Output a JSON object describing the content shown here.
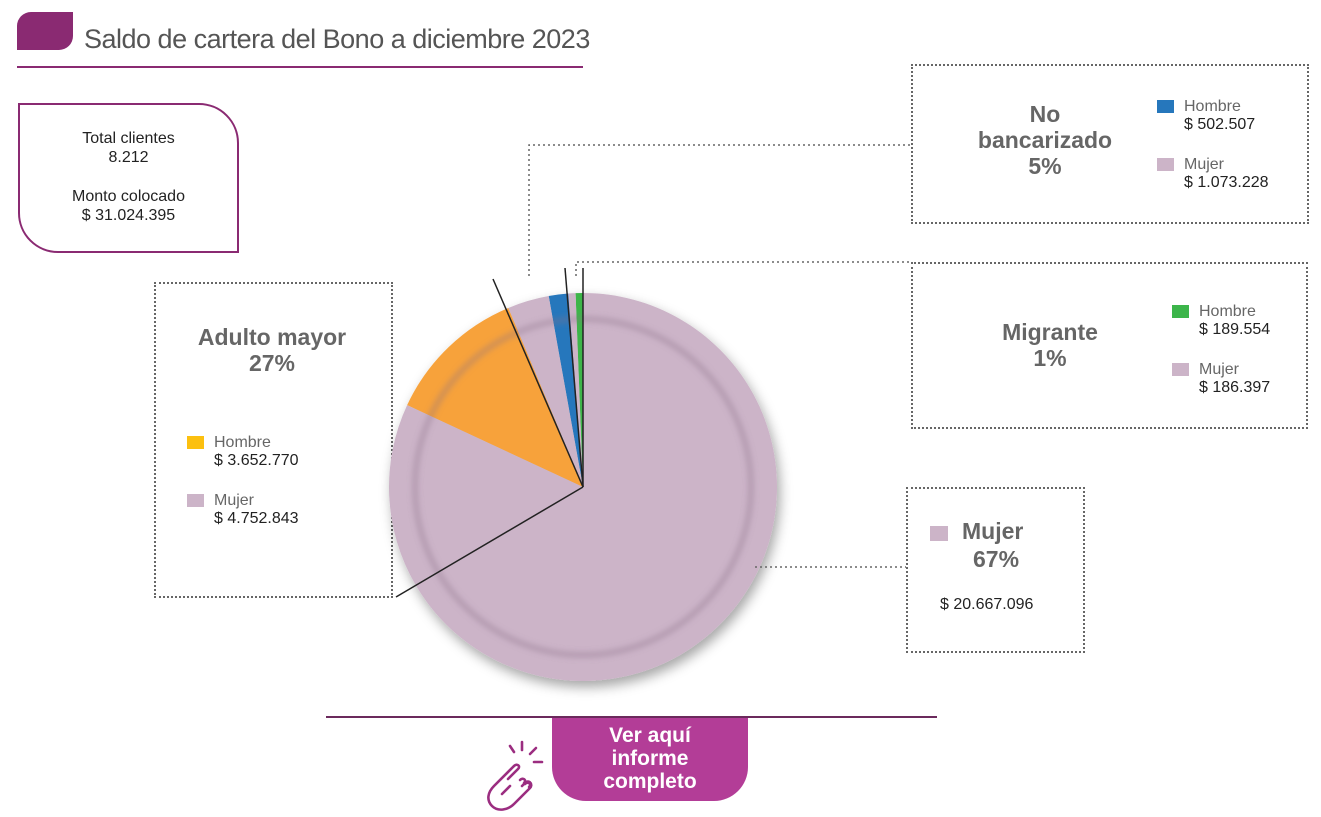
{
  "header": {
    "title": "Saldo de cartera del Bono a diciembre 2023"
  },
  "summary": {
    "clients_label": "Total clientes",
    "clients_value": "8.212",
    "amount_label": "Monto colocado",
    "amount_value": "$ 31.024.395"
  },
  "segments": {
    "adulto": {
      "title1": "Adulto mayor",
      "title2": "27%",
      "hombre_label": "Hombre",
      "hombre_value": "$ 3.652.770",
      "mujer_label": "Mujer",
      "mujer_value": "$ 4.752.843"
    },
    "nobanc": {
      "title1": "No",
      "title2": "bancarizado",
      "title3": "5%",
      "hombre_label": "Hombre",
      "hombre_value": "$ 502.507",
      "mujer_label": "Mujer",
      "mujer_value": "$ 1.073.228"
    },
    "migrante": {
      "title1": "Migrante",
      "title2": "1%",
      "hombre_label": "Hombre",
      "hombre_value": "$ 189.554",
      "mujer_label": "Mujer",
      "mujer_value": "$ 186.397"
    },
    "mujer": {
      "title1": "Mujer",
      "title2": "67%",
      "value": "$ 20.667.096"
    }
  },
  "cta": {
    "line1": "Ver aquí",
    "line2": "informe",
    "line3": "completo"
  },
  "colors": {
    "brand": "#8a2a72",
    "cta": "#b33d97",
    "mujer": "#ccb4c8",
    "adulto_hombre": "#f7a23b",
    "adulto_hombre_legend": "#fcc00f",
    "nobanc_hombre": "#2677bc",
    "migrante_hombre": "#3cb54a"
  },
  "chart_data": {
    "type": "pie",
    "title": "Saldo de cartera del Bono a diciembre 2023",
    "slices": [
      {
        "group": "Mujer",
        "sex": "Mujer",
        "value": 20667096,
        "color": "#ccb4c8"
      },
      {
        "group": "Adulto mayor",
        "sex": "Mujer",
        "value": 4752843,
        "color": "#ccb4c8"
      },
      {
        "group": "Adulto mayor",
        "sex": "Hombre",
        "value": 3652770,
        "color": "#f7a23b"
      },
      {
        "group": "No bancarizado",
        "sex": "Mujer",
        "value": 1073228,
        "color": "#ccb4c8"
      },
      {
        "group": "No bancarizado",
        "sex": "Hombre",
        "value": 502507,
        "color": "#2677bc"
      },
      {
        "group": "Migrante",
        "sex": "Mujer",
        "value": 186397,
        "color": "#ccb4c8"
      },
      {
        "group": "Migrante",
        "sex": "Hombre",
        "value": 189554,
        "color": "#3cb54a"
      }
    ],
    "group_percentages": {
      "Adulto mayor": 27,
      "No bancarizado": 5,
      "Migrante": 1,
      "Mujer": 67
    },
    "total": 31024395
  }
}
